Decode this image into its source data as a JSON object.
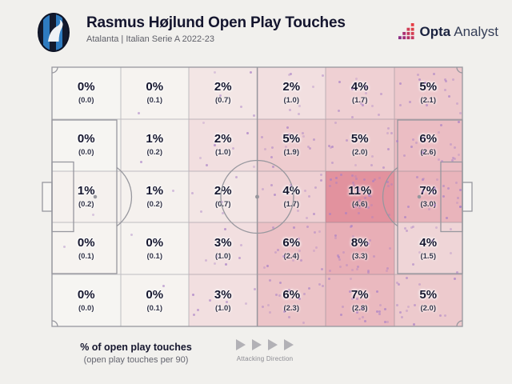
{
  "header": {
    "title": "Rasmus Højlund Open Play Touches",
    "subtitle": "Atalanta | Italian Serie A 2022-23",
    "club_logo": "Atalanta crest",
    "brand_bold": "Opta",
    "brand_regular": "Analyst"
  },
  "chart_data": {
    "type": "heatmap",
    "title": "Rasmus Højlund Open Play Touches",
    "subtitle": "Atalanta | Italian Serie A 2022-23",
    "grid": {
      "rows": 5,
      "cols": 6,
      "orientation": "attacking left to right"
    },
    "cells_pct": [
      [
        "0%",
        "0%",
        "2%",
        "2%",
        "4%",
        "5%"
      ],
      [
        "0%",
        "1%",
        "2%",
        "5%",
        "5%",
        "6%"
      ],
      [
        "1%",
        "1%",
        "2%",
        "4%",
        "11%",
        "7%"
      ],
      [
        "0%",
        "0%",
        "3%",
        "6%",
        "8%",
        "4%"
      ],
      [
        "0%",
        "0%",
        "3%",
        "6%",
        "7%",
        "5%"
      ]
    ],
    "cells_per90": [
      [
        0.0,
        0.1,
        0.7,
        1.0,
        1.7,
        2.1
      ],
      [
        0.0,
        0.2,
        1.0,
        1.9,
        2.0,
        2.6
      ],
      [
        0.2,
        0.2,
        0.7,
        1.7,
        4.6,
        3.0
      ],
      [
        0.1,
        0.1,
        1.0,
        2.4,
        3.3,
        1.5
      ],
      [
        0.0,
        0.1,
        1.0,
        2.3,
        2.8,
        2.0
      ]
    ],
    "color_scale": {
      "min_per90": 0,
      "max_per90": 4.6,
      "min_color": "#f6f5f2",
      "max_color": "#e2929e"
    },
    "legend_title": "% of open play touches",
    "legend_subtitle": "(open play touches per 90)",
    "attacking_direction_label": "Attacking Direction"
  },
  "colors": {
    "background": "#f1f0ed",
    "dot": "#a87fc6",
    "navy_text": "#14152e",
    "pitch_line": "#97979e",
    "arrow_gray": "#b2b1b6"
  }
}
